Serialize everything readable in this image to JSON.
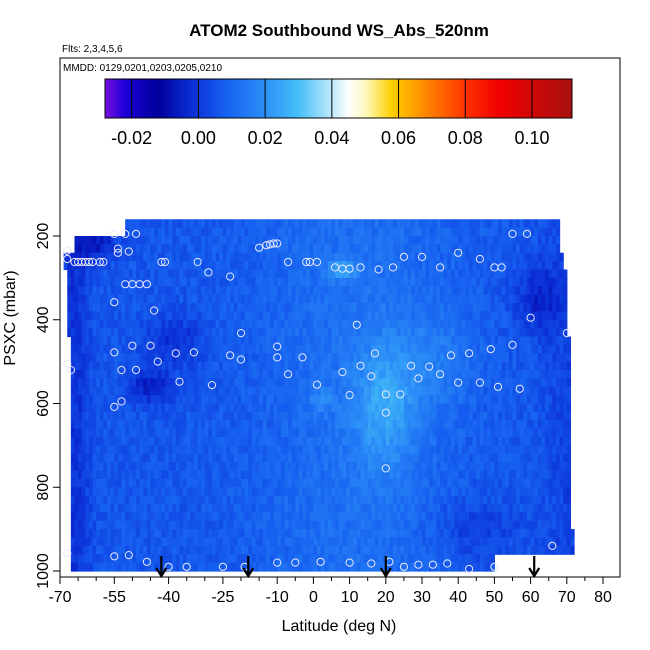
{
  "chart_data": {
    "type": "heatmap",
    "title": "ATOM2 Southbound WS_Abs_520nm",
    "flights_label": "Flts: 2,3,4,5,6",
    "dates_label": "MMDD: 0129,0201,0203,0205,0210",
    "xlabel": "Latitude (deg N)",
    "ylabel": "PSXC (mbar)",
    "xlim": [
      -70,
      85
    ],
    "ylim": [
      1000,
      0
    ],
    "x_ticks": [
      "-70",
      "-55",
      "-40",
      "-25",
      "-10",
      "0",
      "10",
      "20",
      "30",
      "40",
      "50",
      "60",
      "70",
      "80"
    ],
    "x_tick_values": [
      -70,
      -55,
      -40,
      -25,
      -10,
      0,
      10,
      20,
      30,
      40,
      50,
      60,
      70,
      80
    ],
    "x_minor_ticks": [
      -65,
      -60,
      -50,
      -45,
      -35,
      -30,
      -20,
      -15,
      -5,
      5,
      15,
      25,
      35,
      45,
      55,
      65,
      75,
      85
    ],
    "y_ticks": [
      "200",
      "400",
      "600",
      "800",
      "1000"
    ],
    "y_tick_values": [
      200,
      400,
      600,
      800,
      1000
    ],
    "colorbar": {
      "ticks": [
        "-0.02",
        "0.00",
        "0.02",
        "0.04",
        "0.06",
        "0.08",
        "0.10"
      ],
      "tick_values": [
        -0.02,
        0.0,
        0.02,
        0.04,
        0.06,
        0.08,
        0.1
      ],
      "range": [
        -0.028,
        0.112
      ],
      "stops": [
        {
          "v": -0.028,
          "color": "#7a0ee0"
        },
        {
          "v": -0.022,
          "color": "#1b00d8"
        },
        {
          "v": -0.012,
          "color": "#00009a"
        },
        {
          "v": -0.002,
          "color": "#0b2ed6"
        },
        {
          "v": 0.008,
          "color": "#1660f0"
        },
        {
          "v": 0.02,
          "color": "#2c8ff7"
        },
        {
          "v": 0.03,
          "color": "#46bff8"
        },
        {
          "v": 0.04,
          "color": "#bfe8fb"
        },
        {
          "v": 0.045,
          "color": "#ffffff"
        },
        {
          "v": 0.05,
          "color": "#fff8c0"
        },
        {
          "v": 0.058,
          "color": "#ffd000"
        },
        {
          "v": 0.068,
          "color": "#ff8800"
        },
        {
          "v": 0.08,
          "color": "#ff3300"
        },
        {
          "v": 0.09,
          "color": "#f20000"
        },
        {
          "v": 0.112,
          "color": "#a81010"
        }
      ]
    },
    "profile_arrows_lat": [
      -42,
      -18,
      20,
      61
    ],
    "grid": {
      "lat_min": -69,
      "lat_max": 72,
      "lat_step": 3,
      "p_min": 160,
      "p_max": 1000,
      "p_step": 40,
      "coverage": [
        {
          "p_top": 160,
          "p_bot": 200,
          "lat_min": -52,
          "lat_max": 68
        },
        {
          "p_top": 200,
          "p_bot": 240,
          "lat_min": -66,
          "lat_max": 68
        },
        {
          "p_top": 240,
          "p_bot": 280,
          "lat_min": -69,
          "lat_max": 69
        },
        {
          "p_top": 280,
          "p_bot": 440,
          "lat_min": -68,
          "lat_max": 70
        },
        {
          "p_top": 440,
          "p_bot": 900,
          "lat_min": -67,
          "lat_max": 71
        },
        {
          "p_top": 900,
          "p_bot": 960,
          "lat_min": -67,
          "lat_max": 72
        },
        {
          "p_top": 960,
          "p_bot": 1000,
          "lat_min": -67,
          "lat_max": 50
        }
      ]
    },
    "features": [
      {
        "lat": 20,
        "p": 600,
        "dlat": 9,
        "dp": 160,
        "amp": 0.014
      },
      {
        "lat": 8,
        "p": 280,
        "dlat": 4,
        "dp": 25,
        "amp": 0.014
      },
      {
        "lat": 2,
        "p": 590,
        "dlat": 3,
        "dp": 30,
        "amp": 0.009
      },
      {
        "lat": 35,
        "p": 500,
        "dlat": 10,
        "dp": 120,
        "amp": 0.006
      },
      {
        "lat": -45,
        "p": 560,
        "dlat": 6,
        "dp": 40,
        "amp": -0.012
      },
      {
        "lat": -38,
        "p": 450,
        "dlat": 8,
        "dp": 60,
        "amp": -0.008
      },
      {
        "lat": 62,
        "p": 350,
        "dlat": 6,
        "dp": 80,
        "amp": -0.01
      },
      {
        "lat": -60,
        "p": 220,
        "dlat": 6,
        "dp": 40,
        "amp": -0.012
      },
      {
        "lat": 45,
        "p": 900,
        "dlat": 12,
        "dp": 80,
        "amp": -0.006
      }
    ],
    "sample_points": [
      [
        -55,
        195
      ],
      [
        -52,
        195
      ],
      [
        -49,
        195
      ],
      [
        -68,
        235
      ],
      [
        -68,
        255
      ],
      [
        -54,
        230
      ],
      [
        -54,
        240
      ],
      [
        -51,
        237
      ],
      [
        -66,
        262
      ],
      [
        -65,
        262
      ],
      [
        -64,
        262
      ],
      [
        -63,
        262
      ],
      [
        -62,
        262
      ],
      [
        -61,
        262
      ],
      [
        -59,
        262
      ],
      [
        -58,
        262
      ],
      [
        -42,
        262
      ],
      [
        -41,
        262
      ],
      [
        -32,
        262
      ],
      [
        -29,
        287
      ],
      [
        -23,
        297
      ],
      [
        -15,
        228
      ],
      [
        -13,
        222
      ],
      [
        -12,
        220
      ],
      [
        -11,
        218
      ],
      [
        -10,
        218
      ],
      [
        -7,
        262
      ],
      [
        -2,
        262
      ],
      [
        -1,
        262
      ],
      [
        1,
        262
      ],
      [
        6,
        275
      ],
      [
        8,
        278
      ],
      [
        10,
        278
      ],
      [
        13,
        275
      ],
      [
        18,
        280
      ],
      [
        22,
        275
      ],
      [
        25,
        250
      ],
      [
        30,
        250
      ],
      [
        35,
        275
      ],
      [
        40,
        240
      ],
      [
        46,
        255
      ],
      [
        50,
        275
      ],
      [
        52,
        275
      ],
      [
        55,
        195
      ],
      [
        59,
        195
      ],
      [
        -52,
        315
      ],
      [
        -50,
        315
      ],
      [
        -48,
        315
      ],
      [
        -46,
        315
      ],
      [
        -44,
        378
      ],
      [
        -55,
        358
      ],
      [
        -20,
        432
      ],
      [
        -10,
        464
      ],
      [
        -10,
        490
      ],
      [
        12,
        412
      ],
      [
        60,
        395
      ],
      [
        70,
        432
      ],
      [
        -68,
        505
      ],
      [
        -67,
        520
      ],
      [
        -55,
        478
      ],
      [
        -53,
        520
      ],
      [
        -50,
        462
      ],
      [
        -49,
        520
      ],
      [
        -45,
        462
      ],
      [
        -43,
        500
      ],
      [
        -38,
        480
      ],
      [
        -37,
        548
      ],
      [
        -33,
        478
      ],
      [
        -28,
        556
      ],
      [
        -23,
        485
      ],
      [
        -20,
        495
      ],
      [
        -7,
        530
      ],
      [
        -3,
        490
      ],
      [
        1,
        555
      ],
      [
        8,
        525
      ],
      [
        10,
        580
      ],
      [
        13,
        510
      ],
      [
        16,
        535
      ],
      [
        17,
        480
      ],
      [
        20,
        578
      ],
      [
        24,
        578
      ],
      [
        27,
        510
      ],
      [
        29,
        540
      ],
      [
        32,
        512
      ],
      [
        35,
        530
      ],
      [
        38,
        485
      ],
      [
        40,
        550
      ],
      [
        43,
        480
      ],
      [
        46,
        550
      ],
      [
        49,
        470
      ],
      [
        51,
        560
      ],
      [
        55,
        460
      ],
      [
        57,
        565
      ],
      [
        20,
        622
      ],
      [
        20,
        755
      ],
      [
        -55,
        608
      ],
      [
        -53,
        595
      ],
      [
        66,
        940
      ],
      [
        -68,
        958
      ],
      [
        -55,
        965
      ],
      [
        -51,
        962
      ],
      [
        -46,
        978
      ],
      [
        -40,
        990
      ],
      [
        -35,
        990
      ],
      [
        -25,
        990
      ],
      [
        -19,
        990
      ],
      [
        -10,
        980
      ],
      [
        -5,
        980
      ],
      [
        2,
        978
      ],
      [
        10,
        980
      ],
      [
        16,
        982
      ],
      [
        21,
        978
      ],
      [
        25,
        990
      ],
      [
        29,
        985
      ],
      [
        33,
        985
      ],
      [
        37,
        982
      ],
      [
        43,
        995
      ],
      [
        50,
        990
      ]
    ]
  }
}
